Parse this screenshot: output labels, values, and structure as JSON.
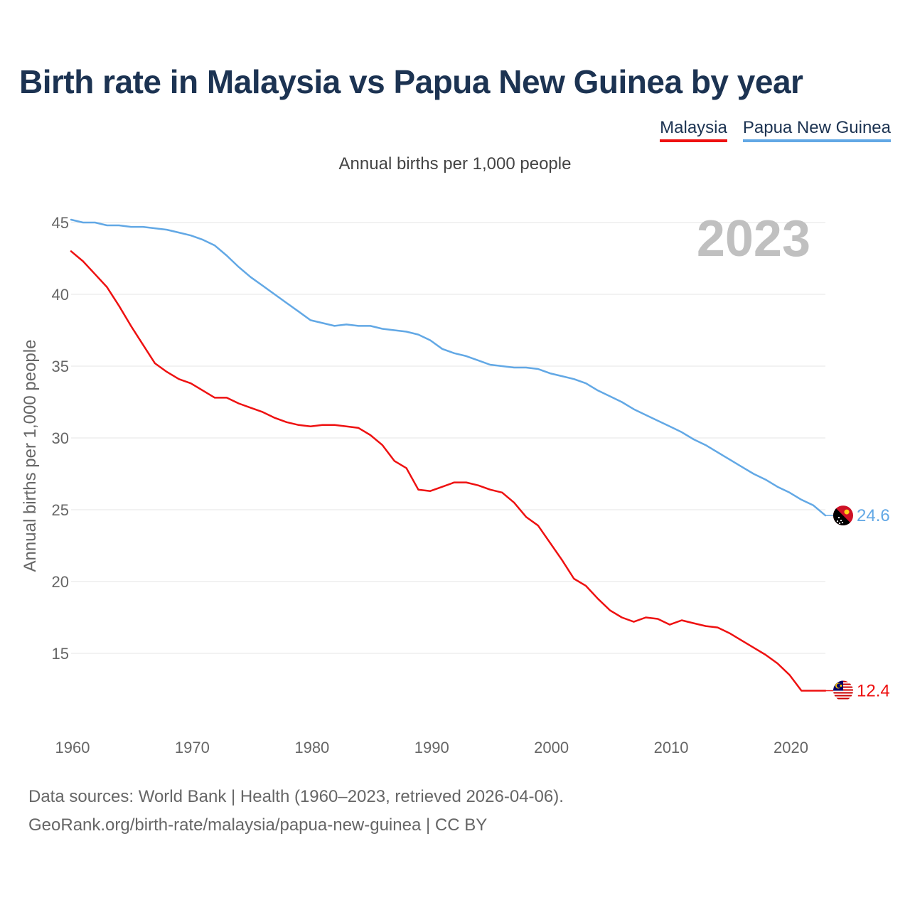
{
  "title": "Birth rate in Malaysia vs Papua New Guinea by year",
  "legend": [
    {
      "name": "Malaysia",
      "color": "#ee1111"
    },
    {
      "name": "Papua New Guinea",
      "color": "#62a8e5"
    }
  ],
  "subtitle": "Annual births per 1,000 people",
  "year_watermark": "2023",
  "footer": {
    "line1": "Data sources: World Bank | Health (1960–2023, retrieved 2026-04-06).",
    "line2": "GeoRank.org/birth-rate/malaysia/papua-new-guinea | CC BY"
  },
  "chart_data": {
    "type": "line",
    "title": "Birth rate in Malaysia vs Papua New Guinea by year",
    "ylabel": "Annual births per 1,000 people",
    "xlabel": "",
    "xlim": [
      1960,
      2023
    ],
    "ylim": [
      10,
      46
    ],
    "x_ticks": [
      1960,
      1970,
      1980,
      1990,
      2000,
      2010,
      2020
    ],
    "y_ticks": [
      15,
      20,
      25,
      30,
      35,
      40,
      45
    ],
    "grid": true,
    "x": [
      1960,
      1961,
      1962,
      1963,
      1964,
      1965,
      1966,
      1967,
      1968,
      1969,
      1970,
      1971,
      1972,
      1973,
      1974,
      1975,
      1976,
      1977,
      1978,
      1979,
      1980,
      1981,
      1982,
      1983,
      1984,
      1985,
      1986,
      1987,
      1988,
      1989,
      1990,
      1991,
      1992,
      1993,
      1994,
      1995,
      1996,
      1997,
      1998,
      1999,
      2000,
      2001,
      2002,
      2003,
      2004,
      2005,
      2006,
      2007,
      2008,
      2009,
      2010,
      2011,
      2012,
      2013,
      2014,
      2015,
      2016,
      2017,
      2018,
      2019,
      2020,
      2021,
      2022,
      2023
    ],
    "series": [
      {
        "name": "Malaysia",
        "color": "#ee1111",
        "end_label": "12.4",
        "values": [
          43.0,
          42.3,
          41.4,
          40.5,
          39.2,
          37.8,
          36.5,
          35.2,
          34.6,
          34.1,
          33.8,
          33.3,
          32.8,
          32.8,
          32.4,
          32.1,
          31.8,
          31.4,
          31.1,
          30.9,
          30.8,
          30.9,
          30.9,
          30.8,
          30.7,
          30.2,
          29.5,
          28.4,
          27.9,
          26.4,
          26.3,
          26.6,
          26.9,
          26.9,
          26.7,
          26.4,
          26.2,
          25.5,
          24.5,
          23.9,
          22.7,
          21.5,
          20.2,
          19.7,
          18.8,
          18.0,
          17.5,
          17.2,
          17.5,
          17.4,
          17.0,
          17.3,
          17.1,
          16.9,
          16.8,
          16.4,
          15.9,
          15.4,
          14.9,
          14.3,
          13.5,
          12.4,
          12.4,
          12.4
        ]
      },
      {
        "name": "Papua New Guinea",
        "color": "#62a8e5",
        "end_label": "24.6",
        "values": [
          45.2,
          45.0,
          45.0,
          44.8,
          44.8,
          44.7,
          44.7,
          44.6,
          44.5,
          44.3,
          44.1,
          43.8,
          43.4,
          42.7,
          41.9,
          41.2,
          40.6,
          40.0,
          39.4,
          38.8,
          38.2,
          38.0,
          37.8,
          37.9,
          37.8,
          37.8,
          37.6,
          37.5,
          37.4,
          37.2,
          36.8,
          36.2,
          35.9,
          35.7,
          35.4,
          35.1,
          35.0,
          34.9,
          34.9,
          34.8,
          34.5,
          34.3,
          34.1,
          33.8,
          33.3,
          32.9,
          32.5,
          32.0,
          31.6,
          31.2,
          30.8,
          30.4,
          29.9,
          29.5,
          29.0,
          28.5,
          28.0,
          27.5,
          27.1,
          26.6,
          26.2,
          25.7,
          25.3,
          24.6
        ]
      }
    ]
  }
}
